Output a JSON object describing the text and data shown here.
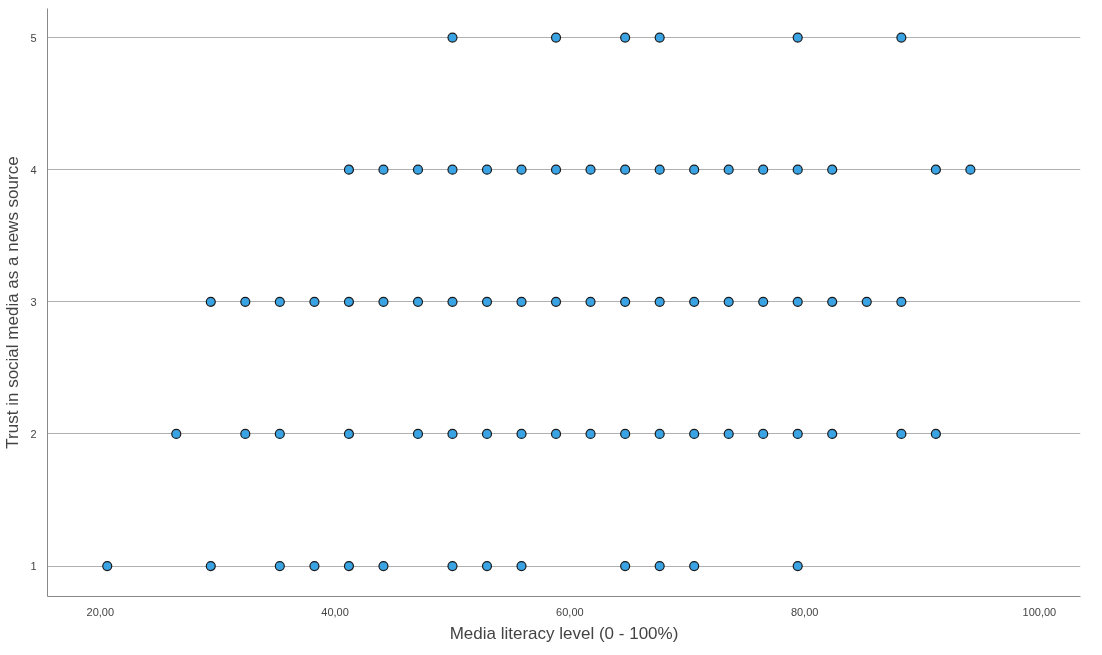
{
  "chart_data": {
    "type": "scatter",
    "xlabel": "Media literacy level (0 - 100%)",
    "ylabel": "Trust in social media as a news source",
    "x": [
      50,
      58.82,
      64.71,
      67.65,
      79.41,
      88.24,
      41.18,
      44.12,
      47.06,
      50,
      52.94,
      55.88,
      58.82,
      61.76,
      64.71,
      67.65,
      70.59,
      73.53,
      76.47,
      79.41,
      82.35,
      91.18,
      94.12,
      29.41,
      32.35,
      35.29,
      38.24,
      41.18,
      44.12,
      47.06,
      50,
      52.94,
      55.88,
      58.82,
      61.76,
      64.71,
      67.65,
      70.59,
      73.53,
      76.47,
      79.41,
      82.35,
      85.29,
      88.24,
      26.47,
      32.35,
      35.29,
      41.18,
      47.06,
      50,
      52.94,
      55.88,
      58.82,
      61.76,
      64.71,
      67.65,
      70.59,
      73.53,
      76.47,
      79.41,
      82.35,
      88.24,
      91.18,
      20.59,
      29.41,
      35.29,
      38.24,
      41.18,
      44.12,
      50,
      52.94,
      55.88,
      64.71,
      67.65,
      70.59,
      79.41
    ],
    "series": [
      {
        "color": "#3aa3e3",
        "values": [
          5,
          5,
          5,
          5,
          5,
          5,
          4,
          4,
          4,
          4,
          4,
          4,
          4,
          4,
          4,
          4,
          4,
          4,
          4,
          4,
          4,
          4,
          4,
          3,
          3,
          3,
          3,
          3,
          3,
          3,
          3,
          3,
          3,
          3,
          3,
          3,
          3,
          3,
          3,
          3,
          3,
          3,
          3,
          3,
          2,
          2,
          2,
          2,
          2,
          2,
          2,
          2,
          2,
          2,
          2,
          2,
          2,
          2,
          2,
          2,
          2,
          2,
          2,
          1,
          1,
          1,
          1,
          1,
          1,
          1,
          1,
          1,
          1,
          1,
          1,
          1
        ]
      }
    ],
    "xlim": [
      15.5,
      103.5
    ],
    "ylim": [
      0.77,
      5.22
    ],
    "xticks": [
      {
        "value": 20,
        "label": "20,00"
      },
      {
        "value": 40,
        "label": "40,00"
      },
      {
        "value": 60,
        "label": "60,00"
      },
      {
        "value": 80,
        "label": "80,00"
      },
      {
        "value": 100,
        "label": "100,00"
      }
    ],
    "yticks": [
      1,
      2,
      3,
      4,
      5
    ],
    "grid": "y",
    "marker": "circle"
  }
}
